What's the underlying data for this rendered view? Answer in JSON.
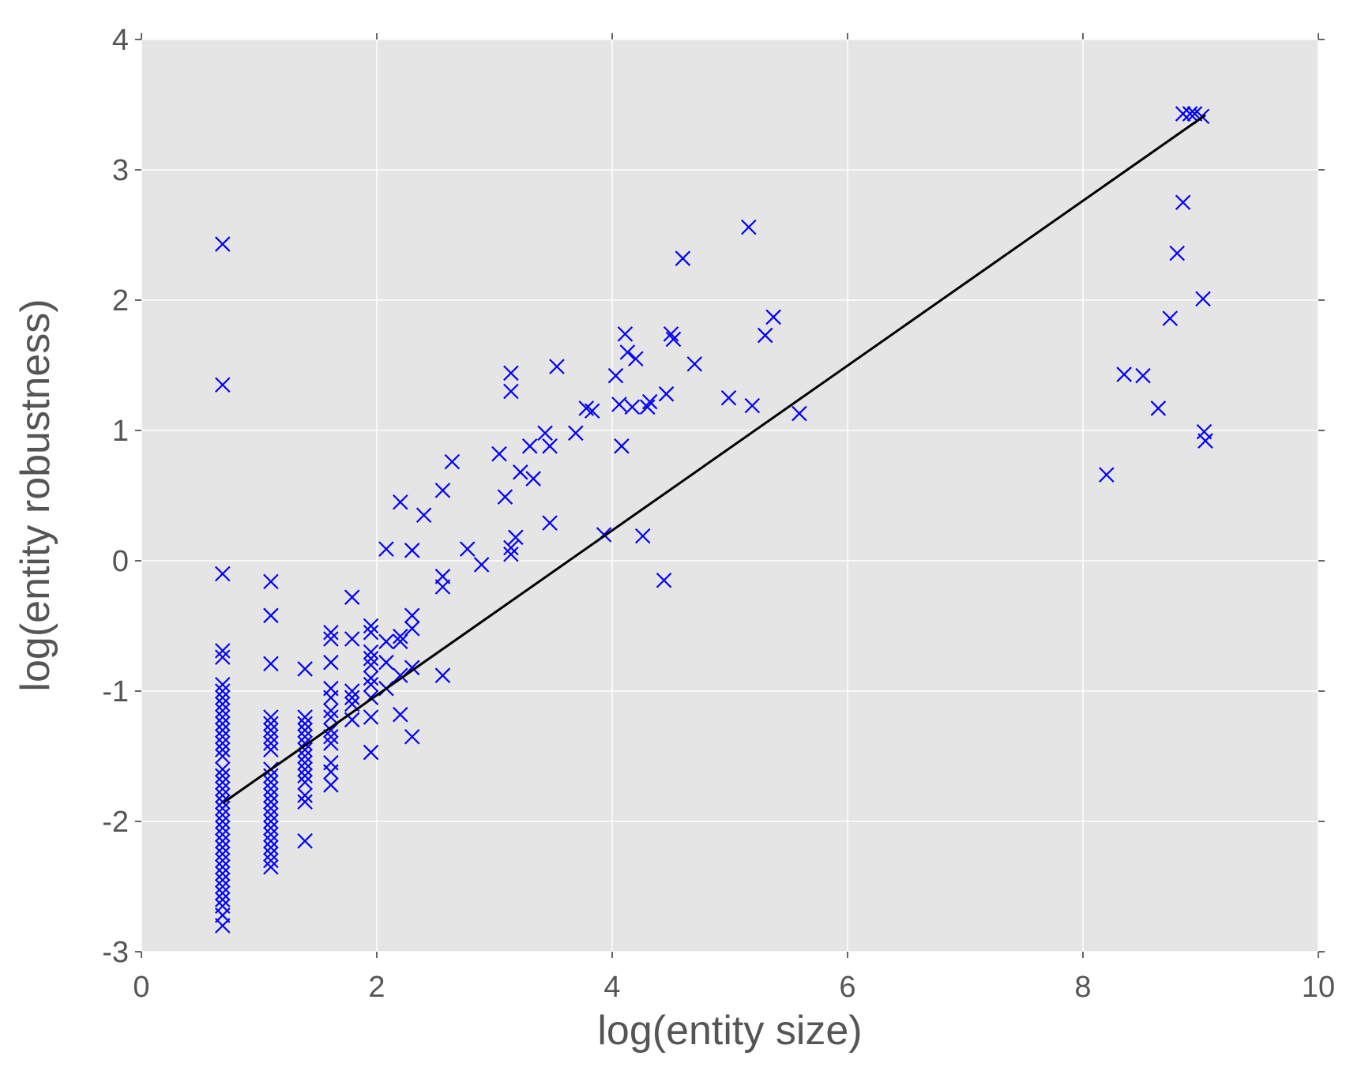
{
  "chart_data": {
    "type": "scatter",
    "title": "",
    "xlabel": "log(entity size)",
    "ylabel": "log(entity robustness)",
    "xlim": [
      0,
      10
    ],
    "ylim": [
      -3,
      4
    ],
    "xticks": [
      0,
      2,
      4,
      6,
      8,
      10
    ],
    "yticks": [
      4,
      3,
      2,
      1,
      0,
      -1,
      -2,
      -3
    ],
    "xtick_labels": [
      "0",
      "2",
      "4",
      "6",
      "8",
      "10"
    ],
    "ytick_labels": [
      "4",
      "3",
      "2",
      "1",
      "0",
      "-1",
      "-2",
      "-3"
    ],
    "grid": true,
    "background": "#e5e5e5",
    "gridColor": "#ffffff",
    "marker": "x",
    "markerColor": "#0000ff",
    "lineColor": "#000000",
    "series": [
      {
        "kind": "scatter",
        "points": [
          [
            0.69,
            2.43
          ],
          [
            0.69,
            1.35
          ],
          [
            0.69,
            -0.1
          ],
          [
            0.69,
            -0.69
          ],
          [
            0.69,
            -0.74
          ],
          [
            0.69,
            -0.95
          ],
          [
            0.69,
            -1.0
          ],
          [
            0.69,
            -1.05
          ],
          [
            0.69,
            -1.1
          ],
          [
            0.69,
            -1.15
          ],
          [
            0.69,
            -1.2
          ],
          [
            0.69,
            -1.25
          ],
          [
            0.69,
            -1.3
          ],
          [
            0.69,
            -1.35
          ],
          [
            0.69,
            -1.4
          ],
          [
            0.69,
            -1.45
          ],
          [
            0.69,
            -1.5
          ],
          [
            0.69,
            -1.6
          ],
          [
            0.69,
            -1.65
          ],
          [
            0.69,
            -1.7
          ],
          [
            0.69,
            -1.75
          ],
          [
            0.69,
            -1.8
          ],
          [
            0.69,
            -1.85
          ],
          [
            0.69,
            -1.9
          ],
          [
            0.69,
            -1.95
          ],
          [
            0.69,
            -2.0
          ],
          [
            0.69,
            -2.05
          ],
          [
            0.69,
            -2.1
          ],
          [
            0.69,
            -2.15
          ],
          [
            0.69,
            -2.2
          ],
          [
            0.69,
            -2.25
          ],
          [
            0.69,
            -2.3
          ],
          [
            0.69,
            -2.35
          ],
          [
            0.69,
            -2.4
          ],
          [
            0.69,
            -2.45
          ],
          [
            0.69,
            -2.5
          ],
          [
            0.69,
            -2.55
          ],
          [
            0.69,
            -2.6
          ],
          [
            0.69,
            -2.65
          ],
          [
            0.69,
            -2.72
          ],
          [
            0.69,
            -2.8
          ],
          [
            1.1,
            -0.16
          ],
          [
            1.1,
            -0.42
          ],
          [
            1.1,
            -0.79
          ],
          [
            1.1,
            -1.2
          ],
          [
            1.1,
            -1.25
          ],
          [
            1.1,
            -1.3
          ],
          [
            1.1,
            -1.35
          ],
          [
            1.1,
            -1.4
          ],
          [
            1.1,
            -1.45
          ],
          [
            1.1,
            -1.6
          ],
          [
            1.1,
            -1.65
          ],
          [
            1.1,
            -1.7
          ],
          [
            1.1,
            -1.75
          ],
          [
            1.1,
            -1.8
          ],
          [
            1.1,
            -1.85
          ],
          [
            1.1,
            -1.9
          ],
          [
            1.1,
            -1.95
          ],
          [
            1.1,
            -2.0
          ],
          [
            1.1,
            -2.05
          ],
          [
            1.1,
            -2.1
          ],
          [
            1.1,
            -2.15
          ],
          [
            1.1,
            -2.2
          ],
          [
            1.1,
            -2.25
          ],
          [
            1.1,
            -2.3
          ],
          [
            1.1,
            -2.35
          ],
          [
            1.39,
            -0.83
          ],
          [
            1.39,
            -1.2
          ],
          [
            1.39,
            -1.25
          ],
          [
            1.39,
            -1.3
          ],
          [
            1.39,
            -1.35
          ],
          [
            1.39,
            -1.4
          ],
          [
            1.39,
            -1.45
          ],
          [
            1.39,
            -1.5
          ],
          [
            1.39,
            -1.55
          ],
          [
            1.39,
            -1.6
          ],
          [
            1.39,
            -1.65
          ],
          [
            1.39,
            -1.7
          ],
          [
            1.39,
            -1.8
          ],
          [
            1.39,
            -1.85
          ],
          [
            1.39,
            -2.15
          ],
          [
            1.61,
            -0.55
          ],
          [
            1.61,
            -0.6
          ],
          [
            1.61,
            -0.78
          ],
          [
            1.61,
            -0.98
          ],
          [
            1.61,
            -1.05
          ],
          [
            1.61,
            -1.15
          ],
          [
            1.61,
            -1.2
          ],
          [
            1.61,
            -1.3
          ],
          [
            1.61,
            -1.35
          ],
          [
            1.61,
            -1.4
          ],
          [
            1.61,
            -1.55
          ],
          [
            1.61,
            -1.62
          ],
          [
            1.61,
            -1.72
          ],
          [
            1.79,
            -0.28
          ],
          [
            1.79,
            -0.6
          ],
          [
            1.79,
            -1.0
          ],
          [
            1.79,
            -1.05
          ],
          [
            1.79,
            -1.1
          ],
          [
            1.79,
            -1.22
          ],
          [
            1.95,
            -0.5
          ],
          [
            1.95,
            -0.55
          ],
          [
            1.95,
            -0.7
          ],
          [
            1.95,
            -0.75
          ],
          [
            1.95,
            -0.8
          ],
          [
            1.95,
            -0.9
          ],
          [
            1.95,
            -0.95
          ],
          [
            1.95,
            -1.05
          ],
          [
            1.95,
            -1.2
          ],
          [
            1.95,
            -1.47
          ],
          [
            2.08,
            0.09
          ],
          [
            2.08,
            -0.62
          ],
          [
            2.08,
            -0.78
          ],
          [
            2.08,
            -0.98
          ],
          [
            2.2,
            0.45
          ],
          [
            2.2,
            -0.58
          ],
          [
            2.2,
            -0.62
          ],
          [
            2.2,
            -0.88
          ],
          [
            2.2,
            -1.18
          ],
          [
            2.3,
            0.08
          ],
          [
            2.3,
            -0.42
          ],
          [
            2.3,
            -0.52
          ],
          [
            2.3,
            -0.82
          ],
          [
            2.3,
            -1.35
          ],
          [
            2.4,
            0.35
          ],
          [
            2.56,
            0.54
          ],
          [
            2.56,
            -0.12
          ],
          [
            2.56,
            -0.2
          ],
          [
            2.56,
            -0.88
          ],
          [
            2.64,
            0.76
          ],
          [
            2.77,
            0.09
          ],
          [
            2.89,
            -0.03
          ],
          [
            3.04,
            0.82
          ],
          [
            3.09,
            0.49
          ],
          [
            3.14,
            1.44
          ],
          [
            3.14,
            1.3
          ],
          [
            3.14,
            0.1
          ],
          [
            3.14,
            0.05
          ],
          [
            3.18,
            0.18
          ],
          [
            3.22,
            0.68
          ],
          [
            3.3,
            0.88
          ],
          [
            3.33,
            0.63
          ],
          [
            3.43,
            0.98
          ],
          [
            3.47,
            0.88
          ],
          [
            3.47,
            0.29
          ],
          [
            3.53,
            1.49
          ],
          [
            3.69,
            0.98
          ],
          [
            3.78,
            1.17
          ],
          [
            3.83,
            1.15
          ],
          [
            3.93,
            0.2
          ],
          [
            4.03,
            1.42
          ],
          [
            4.06,
            1.2
          ],
          [
            4.08,
            0.88
          ],
          [
            4.11,
            1.74
          ],
          [
            4.13,
            1.6
          ],
          [
            4.17,
            1.18
          ],
          [
            4.2,
            1.55
          ],
          [
            4.26,
            0.19
          ],
          [
            4.3,
            1.18
          ],
          [
            4.32,
            1.22
          ],
          [
            4.44,
            -0.15
          ],
          [
            4.46,
            1.28
          ],
          [
            4.5,
            1.74
          ],
          [
            4.52,
            1.7
          ],
          [
            4.6,
            2.32
          ],
          [
            4.7,
            1.51
          ],
          [
            4.99,
            1.25
          ],
          [
            5.16,
            2.56
          ],
          [
            5.19,
            1.19
          ],
          [
            5.3,
            1.73
          ],
          [
            5.37,
            1.87
          ],
          [
            5.59,
            1.13
          ],
          [
            8.2,
            0.66
          ],
          [
            8.35,
            1.43
          ],
          [
            8.51,
            1.42
          ],
          [
            8.64,
            1.17
          ],
          [
            8.74,
            1.86
          ],
          [
            8.8,
            2.36
          ],
          [
            8.85,
            2.75
          ],
          [
            8.85,
            3.43
          ],
          [
            8.91,
            3.43
          ],
          [
            8.95,
            3.43
          ],
          [
            9.01,
            3.41
          ],
          [
            9.02,
            2.01
          ],
          [
            9.03,
            0.99
          ],
          [
            9.04,
            0.92
          ]
        ]
      },
      {
        "kind": "line",
        "points": [
          [
            0.69,
            -1.86
          ],
          [
            9.04,
            3.42
          ]
        ]
      }
    ]
  }
}
